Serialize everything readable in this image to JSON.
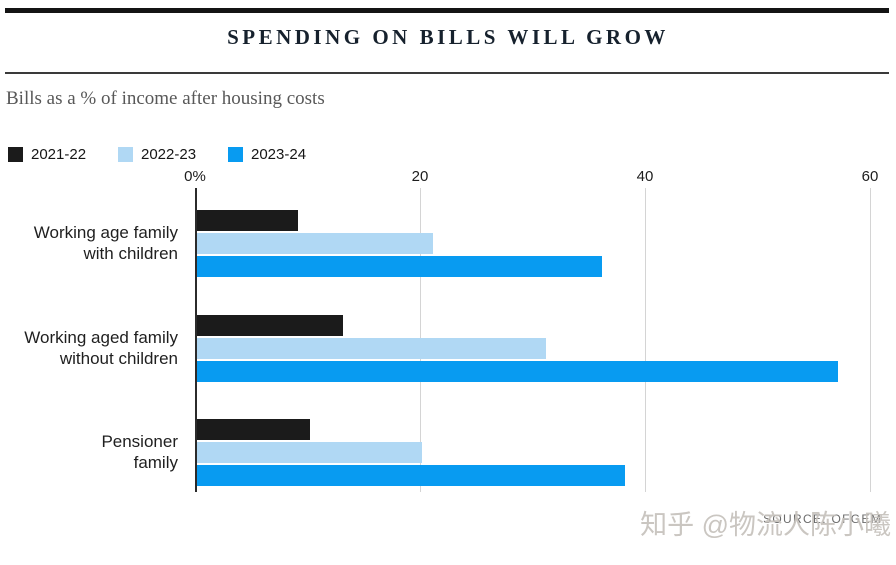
{
  "header": {
    "title": "SPENDING ON BILLS WILL GROW",
    "subtitle": "Bills as a % of income after housing costs"
  },
  "chart_data": {
    "type": "bar",
    "orientation": "horizontal",
    "title": "SPENDING ON BILLS WILL GROW",
    "subtitle": "Bills as a % of income after housing costs",
    "categories": [
      "Working age family\nwith children",
      "Working aged family\nwithout children",
      "Pensioner\nfamily"
    ],
    "series": [
      {
        "name": "2021-22",
        "color": "#1b1b1b",
        "values": [
          9,
          13,
          10
        ]
      },
      {
        "name": "2022-23",
        "color": "#b0d8f4",
        "values": [
          21,
          31,
          20
        ]
      },
      {
        "name": "2023-24",
        "color": "#089bf1",
        "values": [
          36,
          57,
          38
        ]
      }
    ],
    "x_ticks": [
      {
        "value": 0,
        "label": "0%"
      },
      {
        "value": 20,
        "label": "20"
      },
      {
        "value": 40,
        "label": "40"
      },
      {
        "value": 60,
        "label": "60"
      }
    ],
    "xlim": [
      0,
      60
    ],
    "xlabel": "",
    "ylabel": "",
    "grid": true,
    "legend_position": "top-left"
  },
  "footer": {
    "source": "SOURCE: OFGEM",
    "watermark": "知乎 @物流人陈小曦"
  },
  "colors": {
    "bar_black": "#1b1b1b",
    "bar_light_blue": "#b0d8f4",
    "bar_bright_blue": "#089bf1",
    "gridline": "#d4d4d4",
    "axis": "#2b2b2b",
    "top_bar": "#141414",
    "title_text": "#16212d",
    "subtitle_text": "#585858"
  }
}
